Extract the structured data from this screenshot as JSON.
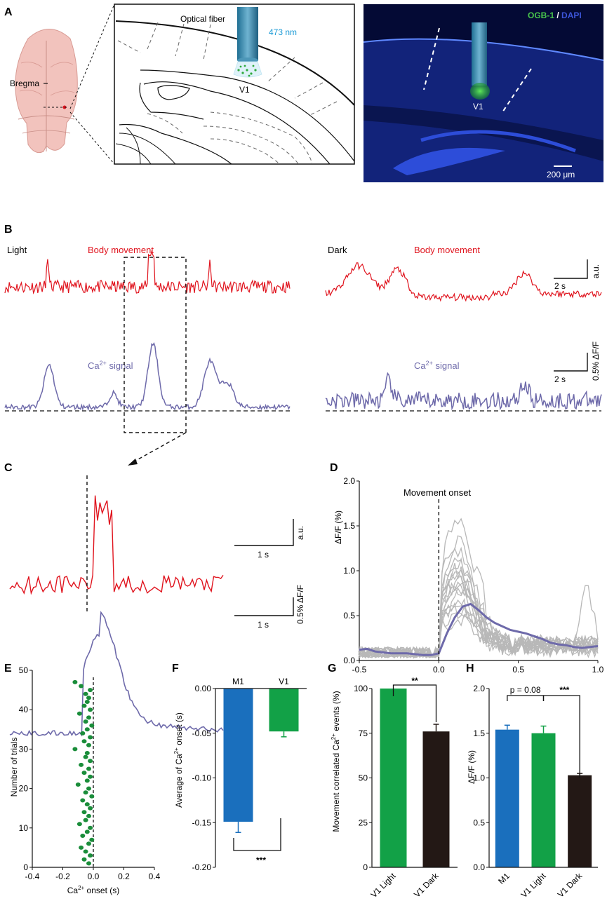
{
  "panels": {
    "A": "A",
    "B": "B",
    "C": "C",
    "D": "D",
    "E": "E",
    "F": "F",
    "G": "G",
    "H": "H"
  },
  "panel_a": {
    "bregma": "Bregma",
    "fiber": "Optical fiber",
    "wavelength": "473 nm",
    "region": "V1",
    "stain_green": "OGB-1",
    "stain_sep": " / ",
    "stain_blue": "DAPI",
    "scale": "200 μm",
    "colors": {
      "laser": "#1a9ad6",
      "green_stain": "#49c84c",
      "blue_stain": "#3c55d8",
      "brain": "#f2c3bd"
    }
  },
  "panel_b": {
    "light": "Light",
    "dark": "Dark",
    "body_movement": "Body movement",
    "ca_signal_base": "Ca",
    "ca_signal_sup": "2+",
    "ca_signal_tail": " signal",
    "scale_time": "2 s",
    "scale_au": "a.u.",
    "scale_df": "0.5% ΔF/F"
  },
  "panel_c": {
    "scale_time": "1 s",
    "scale_au": "a.u.",
    "scale_df": "0.5% ΔF/F"
  },
  "colors": {
    "movement": "#e0141e",
    "calcium": "#6e6aaa",
    "m1": "#1a6fbd",
    "v1_light": "#12a147",
    "v1_dark": "#231815",
    "trial": "#b8b8b8",
    "raster": "#1a8d3a"
  },
  "chart_data": [
    {
      "panel": "D",
      "type": "line",
      "title": "",
      "annotation": "Movement onset",
      "xlabel": "",
      "ylabel": "ΔF/F (%)",
      "xlim": [
        -0.5,
        1.0
      ],
      "ylim": [
        0,
        2.0
      ],
      "xticks": [
        "-0.5",
        "0.0",
        "0.5",
        "1.0"
      ],
      "yticks": [
        "0.0",
        "0.5",
        "1.0",
        "1.5",
        "2.0"
      ],
      "mean_series": {
        "name": "Mean",
        "x": [
          -0.5,
          -0.45,
          -0.4,
          -0.35,
          -0.3,
          -0.25,
          -0.2,
          -0.15,
          -0.1,
          -0.05,
          0.0,
          0.05,
          0.1,
          0.15,
          0.2,
          0.25,
          0.3,
          0.35,
          0.4,
          0.45,
          0.5,
          0.55,
          0.6,
          0.65,
          0.7,
          0.75,
          0.8,
          0.85,
          0.9,
          0.95,
          1.0
        ],
        "y": [
          0.12,
          0.13,
          0.1,
          0.09,
          0.08,
          0.08,
          0.08,
          0.07,
          0.06,
          0.06,
          0.08,
          0.3,
          0.48,
          0.6,
          0.63,
          0.56,
          0.48,
          0.42,
          0.38,
          0.34,
          0.32,
          0.3,
          0.27,
          0.24,
          0.2,
          0.18,
          0.17,
          0.15,
          0.14,
          0.15,
          0.16
        ]
      },
      "trial_peaks": [
        1.45,
        1.2,
        1.0,
        0.95,
        0.9,
        0.85,
        0.82,
        0.78,
        0.72,
        0.7,
        0.65,
        0.6,
        0.55,
        0.5,
        0.45,
        0.4,
        0.35,
        0.3
      ]
    },
    {
      "panel": "E",
      "type": "scatter",
      "xlabel_base": "Ca",
      "xlabel_sup": "2+",
      "xlabel_tail": " onset (s)",
      "ylabel": "Number of trials",
      "xlim": [
        -0.4,
        0.4
      ],
      "ylim": [
        0,
        50
      ],
      "xticks": [
        "-0.4",
        "-0.2",
        "0.0",
        "0.2",
        "0.4"
      ],
      "yticks": [
        "0",
        "10",
        "20",
        "30",
        "40",
        "50"
      ],
      "x": [
        -0.03,
        -0.06,
        -0.02,
        -0.05,
        -0.08,
        -0.03,
        -0.01,
        -0.07,
        -0.04,
        -0.02,
        -0.09,
        -0.05,
        -0.03,
        -0.06,
        -0.02,
        -0.04,
        -0.07,
        -0.01,
        -0.05,
        -0.03,
        -0.1,
        -0.04,
        -0.02,
        -0.06,
        -0.03,
        -0.08,
        -0.02,
        -0.05,
        -0.04,
        -0.12,
        -0.03,
        -0.06,
        -0.02,
        -0.07,
        -0.04,
        -0.01,
        -0.05,
        -0.03,
        -0.09,
        -0.02,
        -0.06,
        -0.04,
        -0.03,
        -0.05,
        -0.02,
        -0.08,
        -0.12
      ],
      "y": [
        1,
        2,
        3,
        4,
        5,
        6,
        7,
        8,
        9,
        10,
        11,
        12,
        13,
        14,
        15,
        16,
        17,
        18,
        19,
        20,
        21,
        22,
        23,
        24,
        25,
        26,
        27,
        28,
        29,
        30,
        31,
        32,
        33,
        34,
        35,
        36,
        37,
        38,
        39,
        40,
        41,
        42,
        43,
        44,
        45,
        46,
        47
      ]
    },
    {
      "panel": "F",
      "type": "bar",
      "categories": [
        "M1",
        "V1"
      ],
      "values": [
        -0.149,
        -0.048
      ],
      "errors": [
        0.012,
        0.006
      ],
      "ylabel_base": "Average of Ca",
      "ylabel_sup": "2+",
      "ylabel_tail": " onset (s)",
      "ylim": [
        -0.2,
        0.0
      ],
      "yticks": [
        "0.00",
        "-0.05",
        "-0.10",
        "-0.15",
        "-0.20"
      ],
      "significance": "***"
    },
    {
      "panel": "G",
      "type": "bar",
      "categories": [
        "V1 Light",
        "V1 Dark"
      ],
      "values": [
        100,
        76
      ],
      "errors": [
        0,
        4
      ],
      "ylabel_base": "Movement correlated Ca",
      "ylabel_sup": "2+",
      "ylabel_tail": " events (%)",
      "ylim": [
        0,
        100
      ],
      "yticks": [
        "0",
        "25",
        "50",
        "75",
        "100"
      ],
      "significance": "**"
    },
    {
      "panel": "H",
      "type": "bar",
      "categories": [
        "M1",
        "V1 Light",
        "V1 Dark"
      ],
      "values": [
        1.54,
        1.5,
        1.03
      ],
      "errors": [
        0.05,
        0.08,
        0.02
      ],
      "ylabel": "ΔF/F (%)",
      "ylim": [
        0,
        2.0
      ],
      "yticks": [
        "0.0",
        "0.5",
        "1.0",
        "1.5",
        "2.0"
      ],
      "comparison_1": "p = 0.08",
      "comparison_2": "***"
    }
  ]
}
